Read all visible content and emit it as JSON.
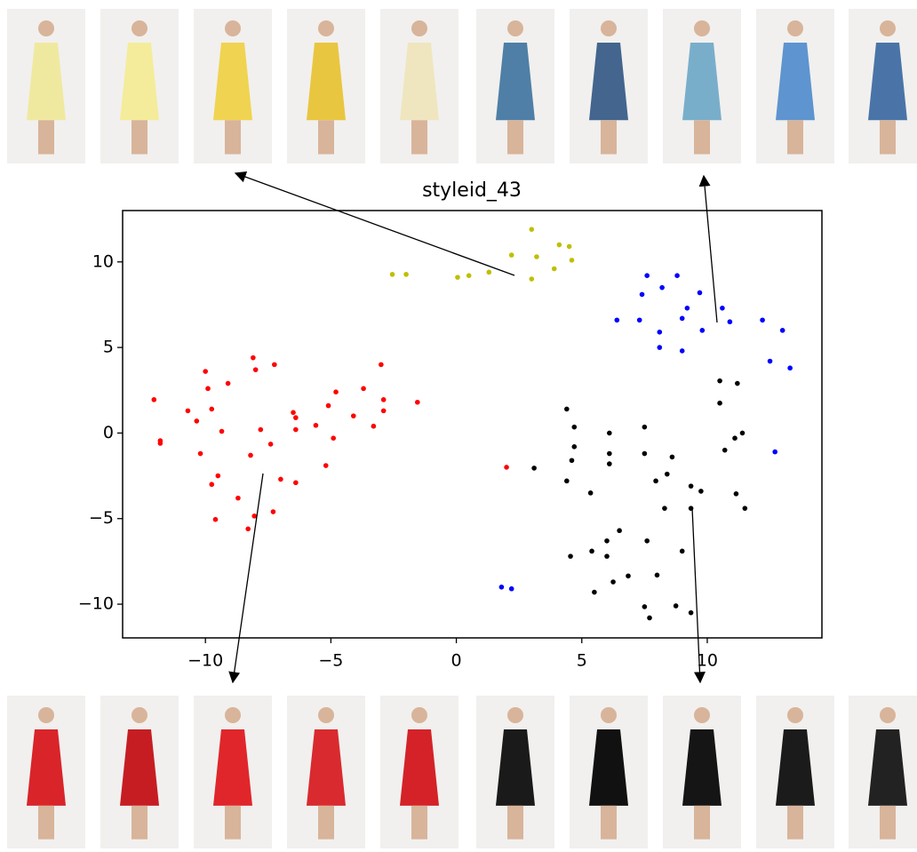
{
  "chart_data": {
    "type": "scatter",
    "title": "styleid_43",
    "xlim": [
      -13.3,
      14.57
    ],
    "ylim": [
      -11.97,
      13.0
    ],
    "xticks": [
      {
        "value": -10,
        "label": "−10"
      },
      {
        "value": -5,
        "label": "−5"
      },
      0,
      5,
      10
    ],
    "yticks": [
      {
        "value": -10,
        "label": "−10"
      },
      {
        "value": -5,
        "label": "−5"
      },
      0,
      5,
      10
    ],
    "series": [
      {
        "color": "#bfbf00",
        "x": [
          -2.55,
          -2.0,
          0.05,
          0.5,
          1.3,
          2.2,
          3.0,
          3.0,
          3.2,
          3.9,
          4.1,
          4.5,
          4.6
        ],
        "values": [
          9.27,
          9.27,
          9.1,
          9.2,
          9.4,
          10.4,
          11.9,
          9.0,
          10.3,
          9.6,
          11.0,
          10.9,
          10.1
        ]
      },
      {
        "color": "#0000ff",
        "x": [
          7.6,
          8.8,
          8.2,
          7.4,
          9.7,
          9.2,
          10.6,
          6.4,
          7.3,
          9.0,
          10.9,
          8.1,
          9.8,
          12.2,
          13.0,
          8.1,
          9.0,
          12.5,
          13.3,
          12.7,
          1.8,
          2.2
        ],
        "values": [
          9.2,
          9.2,
          8.5,
          8.1,
          8.2,
          7.3,
          7.3,
          6.6,
          6.6,
          6.7,
          6.5,
          5.9,
          6.0,
          6.6,
          6.0,
          5.0,
          4.8,
          4.2,
          3.8,
          -1.1,
          -9.0,
          -9.1
        ]
      },
      {
        "color": "#ff0000",
        "x": [
          -12.05,
          -11.8,
          -11.8,
          -10.7,
          -10.35,
          -10.2,
          -10.0,
          -9.9,
          -9.75,
          -9.75,
          -9.5,
          -9.6,
          -9.35,
          -9.1,
          -8.7,
          -8.3,
          -8.2,
          -8.1,
          -8.0,
          -8.05,
          -7.8,
          -7.4,
          -7.25,
          -7.3,
          -7.0,
          -6.5,
          -6.4,
          -6.4,
          -6.4,
          -5.6,
          -5.2,
          -5.1,
          -4.9,
          -4.8,
          -4.1,
          -3.7,
          -3.3,
          -3.0,
          -2.9,
          -2.9,
          -1.55,
          2.0
        ],
        "values": [
          1.95,
          -0.45,
          -0.6,
          1.3,
          0.7,
          -1.2,
          3.6,
          2.6,
          1.4,
          -3.0,
          -2.5,
          -5.05,
          0.1,
          2.9,
          -3.8,
          -5.6,
          -1.3,
          4.4,
          3.7,
          -4.85,
          0.2,
          -0.65,
          4.0,
          -4.6,
          -2.7,
          1.2,
          0.9,
          0.2,
          -2.9,
          0.45,
          -1.9,
          1.6,
          -0.3,
          2.4,
          1.0,
          2.6,
          0.4,
          4.0,
          1.95,
          1.3,
          1.8,
          -2.0
        ]
      },
      {
        "color": "#000000",
        "x": [
          3.1,
          4.4,
          4.7,
          4.7,
          4.6,
          4.4,
          4.55,
          5.35,
          6.1,
          6.1,
          6.1,
          5.4,
          5.5,
          6.0,
          6.0,
          6.25,
          6.5,
          6.85,
          7.5,
          7.5,
          7.6,
          7.5,
          7.7,
          7.95,
          8.0,
          8.3,
          8.4,
          8.6,
          8.75,
          9.0,
          9.35,
          9.35,
          9.35,
          9.75,
          10.5,
          10.5,
          10.7,
          11.1,
          11.2,
          11.4,
          11.15,
          11.5
        ],
        "values": [
          -2.05,
          1.4,
          0.35,
          -0.8,
          -1.6,
          -2.8,
          -7.2,
          -3.5,
          0.0,
          -1.2,
          -1.8,
          -6.9,
          -9.3,
          -6.3,
          -7.2,
          -8.7,
          -5.7,
          -8.35,
          0.35,
          -1.2,
          -6.3,
          -10.15,
          -10.8,
          -2.8,
          -8.3,
          -4.4,
          -2.4,
          -1.4,
          -10.1,
          -6.9,
          -3.1,
          -4.4,
          -10.5,
          -3.4,
          3.05,
          1.75,
          -1.0,
          -0.3,
          2.9,
          0.0,
          -3.55,
          -4.4
        ]
      }
    ]
  }
}
